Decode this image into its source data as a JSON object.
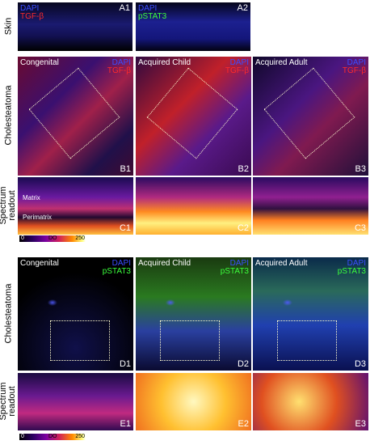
{
  "top": {
    "skin_label": "Skin",
    "cholesteatoma_label": "Cholesteatoma",
    "spectrum_label": [
      "Spectrum",
      "readout"
    ],
    "skin_panels": [
      {
        "stains": [
          "DAPI",
          "TGF-β"
        ],
        "id": "A1"
      },
      {
        "stains": [
          "DAPI",
          "pSTAT3"
        ],
        "id": "A2"
      }
    ],
    "panels": [
      {
        "title": "Congenital",
        "stains": [
          "DAPI",
          "TGF-β"
        ],
        "id": "B1"
      },
      {
        "title": "Acquired Child",
        "stains": [
          "DAPI",
          "TGF-β"
        ],
        "id": "B2"
      },
      {
        "title": "Acquired Adult",
        "stains": [
          "DAPI",
          "TGF-β"
        ],
        "id": "B3"
      }
    ],
    "spectrum_panels": [
      {
        "id": "C1",
        "annotations": [
          "Matrix",
          "Perimatrix"
        ]
      },
      {
        "id": "C2"
      },
      {
        "id": "C3"
      }
    ],
    "colorbar": {
      "min": 0,
      "label": "DO",
      "max": 250
    }
  },
  "bottom": {
    "cholesteatoma_label": "Cholesteatoma",
    "spectrum_label": [
      "Spectrum",
      "readout"
    ],
    "panels": [
      {
        "title": "Congenital",
        "stains": [
          "DAPI",
          "pSTAT3"
        ],
        "id": "D1"
      },
      {
        "title": "Acquired Child",
        "stains": [
          "DAPI",
          "pSTAT3"
        ],
        "id": "D2"
      },
      {
        "title": "Acquired Adult",
        "stains": [
          "DAPI",
          "pSTAT3"
        ],
        "id": "D3"
      }
    ],
    "spectrum_panels": [
      {
        "id": "E1"
      },
      {
        "id": "E2"
      },
      {
        "id": "E3"
      }
    ],
    "colorbar": {
      "min": 0,
      "label": "DO",
      "max": 250
    }
  }
}
